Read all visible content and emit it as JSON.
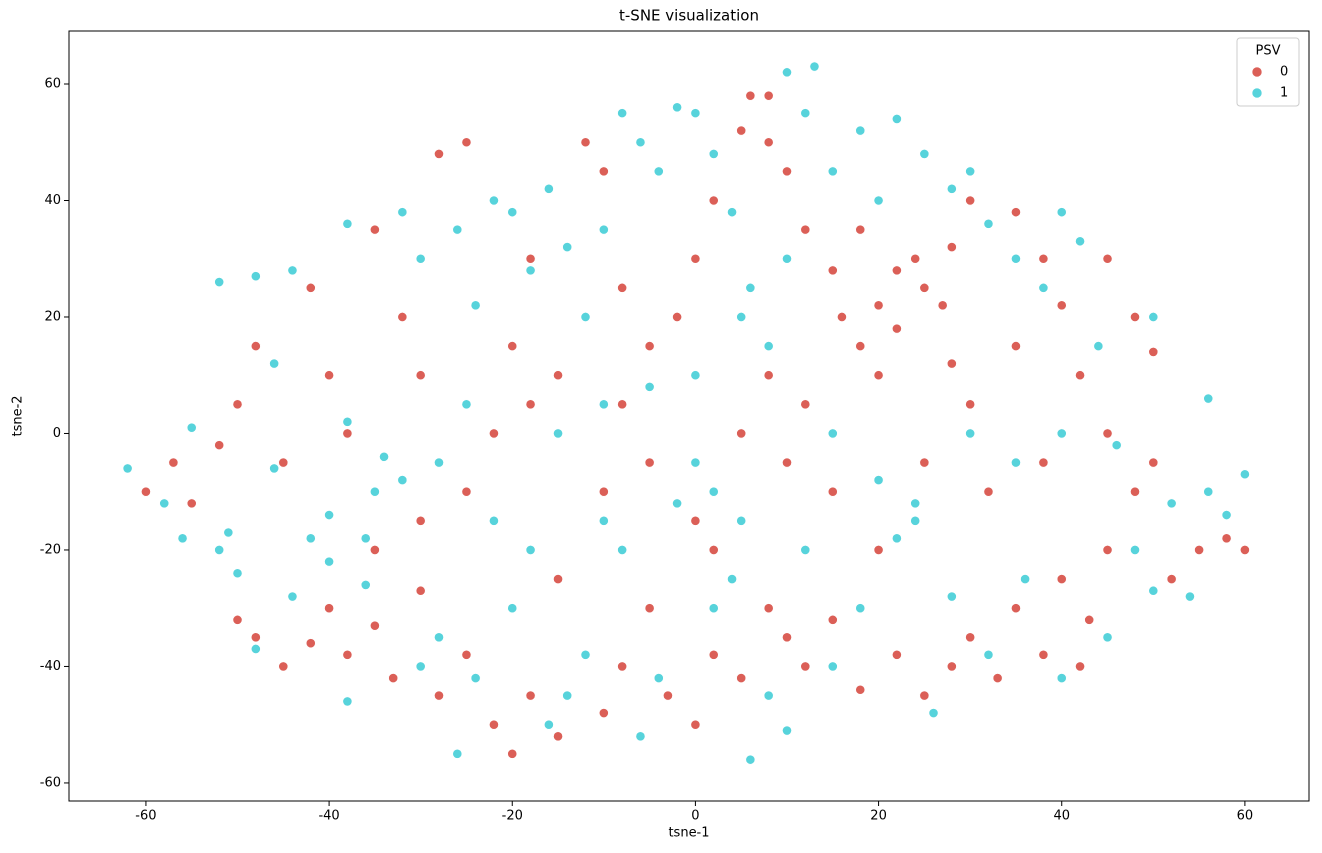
{
  "chart_data": {
    "type": "scatter",
    "title": "t-SNE visualization",
    "x_label": "tsne-1",
    "y_label": "tsne-2",
    "xlim": [
      -68.4,
      67.0
    ],
    "ylim": [
      -63.1,
      69.1
    ],
    "xticks": [
      -60,
      -40,
      -20,
      0,
      20,
      40,
      60
    ],
    "yticks": [
      -60,
      -40,
      -20,
      0,
      20,
      40,
      60
    ],
    "grid": false,
    "legend_title": "PSV",
    "legend_position": "upper right",
    "series": [
      {
        "name": "0",
        "color": "#db5f57",
        "x": [
          -60,
          -57,
          -55,
          -50,
          -48,
          -45,
          -42,
          -40,
          -38,
          -35,
          -33,
          -30,
          -28,
          -25,
          -22,
          -20,
          -18,
          -15,
          -10,
          -8,
          -5,
          -3,
          0,
          2,
          5,
          8,
          10,
          12,
          15,
          18,
          22,
          25,
          28,
          30,
          33,
          35,
          38,
          40,
          43,
          45,
          48,
          50,
          52,
          55,
          58,
          60,
          45,
          42,
          40,
          38,
          35,
          30,
          28,
          25,
          22,
          20,
          18,
          15,
          12,
          10,
          8,
          5,
          2,
          0,
          -2,
          -5,
          -8,
          -10,
          -12,
          -15,
          -18,
          -20,
          -22,
          -25,
          -28,
          -30,
          -32,
          -35,
          -38,
          -40,
          -42,
          -45,
          -48,
          -50,
          -52,
          -30,
          -25,
          -15,
          -10,
          -5,
          0,
          2,
          5,
          10,
          12,
          15,
          20,
          25,
          30,
          35,
          45,
          48,
          50,
          38,
          28,
          18,
          8,
          -18,
          32,
          42,
          -35,
          6,
          8,
          -8,
          22,
          27,
          16,
          24,
          20
        ],
        "y": [
          -10,
          -5,
          -12,
          -32,
          -35,
          -40,
          -36,
          -30,
          -38,
          -33,
          -42,
          -27,
          -45,
          -38,
          -50,
          -55,
          -45,
          -52,
          -48,
          -40,
          -30,
          -45,
          -50,
          -38,
          -42,
          -30,
          -35,
          -40,
          -32,
          -44,
          -38,
          -45,
          -40,
          -35,
          -42,
          -30,
          -38,
          -25,
          -32,
          -20,
          -10,
          -5,
          -25,
          -20,
          -18,
          -20,
          0,
          10,
          22,
          30,
          38,
          40,
          32,
          25,
          18,
          22,
          15,
          28,
          35,
          45,
          50,
          52,
          40,
          30,
          20,
          15,
          25,
          45,
          50,
          10,
          5,
          15,
          0,
          50,
          48,
          10,
          20,
          35,
          0,
          10,
          25,
          -5,
          15,
          5,
          -2,
          -15,
          -10,
          -25,
          -10,
          -5,
          -15,
          -20,
          0,
          -5,
          5,
          -10,
          -20,
          -5,
          5,
          15,
          30,
          20,
          14,
          -5,
          12,
          35,
          10,
          30,
          -10,
          -40,
          -20,
          58,
          58,
          5,
          28,
          22,
          20,
          30,
          10
        ]
      },
      {
        "name": "1",
        "color": "#57d3db",
        "x": [
          -62,
          -58,
          -55,
          -52,
          -50,
          -48,
          -46,
          -44,
          -42,
          -40,
          -38,
          -36,
          -35,
          -32,
          -30,
          -28,
          -26,
          -24,
          -22,
          -20,
          -18,
          -16,
          -14,
          -12,
          -10,
          -8,
          -6,
          -4,
          -2,
          0,
          2,
          4,
          6,
          8,
          10,
          12,
          13,
          15,
          18,
          20,
          22,
          25,
          28,
          30,
          32,
          35,
          38,
          40,
          42,
          44,
          46,
          48,
          50,
          52,
          54,
          56,
          58,
          60,
          56,
          45,
          40,
          36,
          32,
          28,
          26,
          24,
          22,
          20,
          18,
          15,
          12,
          10,
          8,
          6,
          4,
          2,
          0,
          -2,
          -4,
          -6,
          -8,
          -10,
          -12,
          -14,
          -16,
          -18,
          -20,
          -22,
          -24,
          -26,
          -28,
          -30,
          -32,
          -34,
          -36,
          -38,
          -40,
          -44,
          -46,
          -48,
          -51,
          -52,
          -56,
          -15,
          -10,
          -5,
          5,
          10,
          0,
          15,
          30,
          35,
          40,
          2,
          -25,
          5,
          24,
          50,
          -38
        ],
        "y": [
          -6,
          -12,
          1,
          -20,
          -24,
          27,
          12,
          28,
          -18,
          -22,
          36,
          -26,
          -10,
          38,
          30,
          -5,
          35,
          22,
          40,
          38,
          28,
          42,
          32,
          20,
          35,
          55,
          50,
          45,
          56,
          55,
          48,
          38,
          25,
          15,
          62,
          55,
          63,
          45,
          52,
          40,
          54,
          48,
          42,
          45,
          36,
          30,
          25,
          38,
          33,
          15,
          -2,
          -20,
          -27,
          -12,
          -28,
          -10,
          -14,
          -7,
          6,
          -35,
          -42,
          -25,
          -38,
          -28,
          -48,
          -15,
          -18,
          -8,
          -30,
          -40,
          -20,
          -51,
          -45,
          -56,
          -25,
          -10,
          -5,
          -12,
          -42,
          -52,
          -20,
          -15,
          -38,
          -45,
          -50,
          -20,
          -30,
          -15,
          -42,
          -55,
          -35,
          -40,
          -8,
          -4,
          -18,
          -46,
          -14,
          -28,
          -6,
          -37,
          -17,
          26,
          -18,
          0,
          5,
          8,
          20,
          30,
          10,
          0,
          0,
          -5,
          0,
          -30,
          5,
          -15,
          -12,
          20,
          2
        ]
      }
    ]
  }
}
